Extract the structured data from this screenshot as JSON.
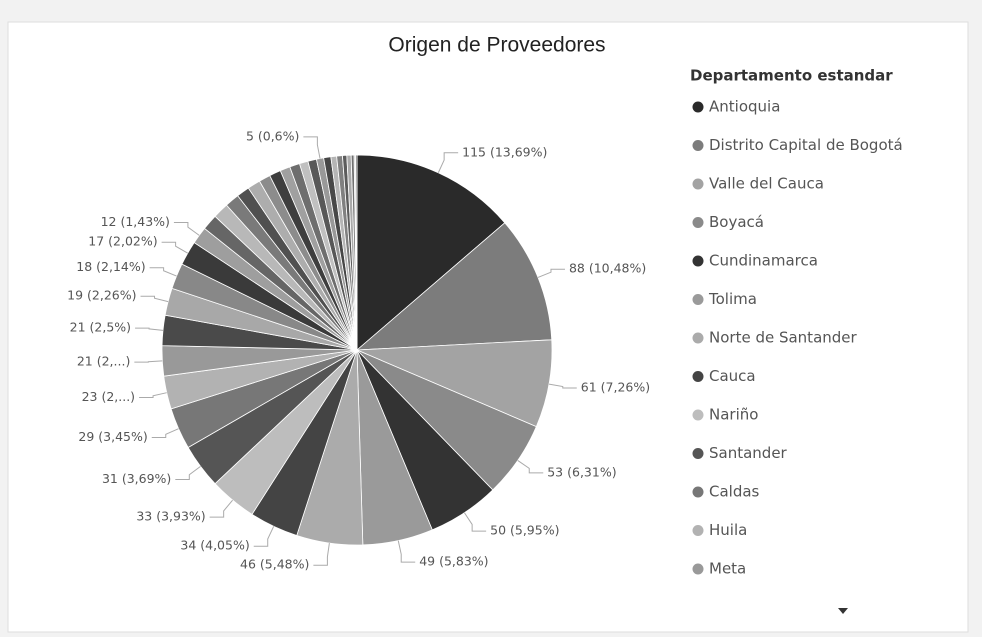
{
  "chart_data": {
    "type": "pie",
    "title": "Origen de Proveedores",
    "legend_title": "Departamento estandar",
    "legend": "right",
    "categories": [
      "Antioquia",
      "Distrito Capital de Bogotá",
      "Valle del Cauca",
      "Boyacá",
      "Cundinamarca",
      "Tolima",
      "Norte de Santander",
      "Cauca",
      "Nariño",
      "Santander",
      "Caldas",
      "Huila",
      "Meta",
      null,
      null,
      null,
      null,
      null,
      null,
      null,
      null,
      null,
      null,
      null,
      null,
      null,
      null,
      null,
      null,
      null,
      null,
      null,
      null,
      null,
      null,
      null,
      null,
      null
    ],
    "values": [
      115,
      88,
      61,
      53,
      50,
      49,
      46,
      34,
      33,
      31,
      29,
      23,
      21,
      21,
      19,
      18,
      17,
      12,
      11,
      11,
      10,
      9,
      9,
      8,
      8,
      7,
      7,
      6,
      6,
      5,
      5,
      4,
      4,
      3,
      3,
      2,
      1,
      1
    ],
    "value_labels": [
      "115 (13,69%)",
      "88 (10,48%)",
      "61 (7,26%)",
      "53 (6,31%)",
      "50 (5,95%)",
      "49 (5,83%)",
      "46 (5,48%)",
      "34 (4,05%)",
      "33 (3,93%)",
      "31 (3,69%)",
      "29 (3,45%)",
      "23 (2,...)",
      "21 (2,...)",
      "21 (2,5%)",
      "19 (2,26%)",
      "18 (2,14%)",
      "17 (2,02%)",
      "12 (1,43%)",
      null,
      null,
      null,
      null,
      null,
      null,
      null,
      null,
      null,
      null,
      null,
      "5 (0,6%)",
      null,
      null,
      null,
      null,
      null,
      null,
      null,
      null
    ],
    "colors": [
      "#2a2a2a",
      "#7c7c7c",
      "#a3a3a3",
      "#8a8a8a",
      "#333333",
      "#9a9a9a",
      "#ababab",
      "#444444",
      "#bdbdbd",
      "#555555",
      "#777777",
      "#b2b2b2",
      "#999999",
      "#4a4a4a",
      "#a8a8a8",
      "#888888",
      "#3a3a3a",
      "#9e9e9e",
      "#666666",
      "#b8b8b8",
      "#7a7a7a",
      "#505050",
      "#adadad",
      "#8c8c8c",
      "#3e3e3e",
      "#a0a0a0",
      "#6e6e6e",
      "#c0c0c0",
      "#585858",
      "#999999",
      "#474747",
      "#b5b5b5",
      "#808080",
      "#5c5c5c",
      "#aaaaaa",
      "#707070",
      "#cccccc",
      "#606060"
    ]
  }
}
